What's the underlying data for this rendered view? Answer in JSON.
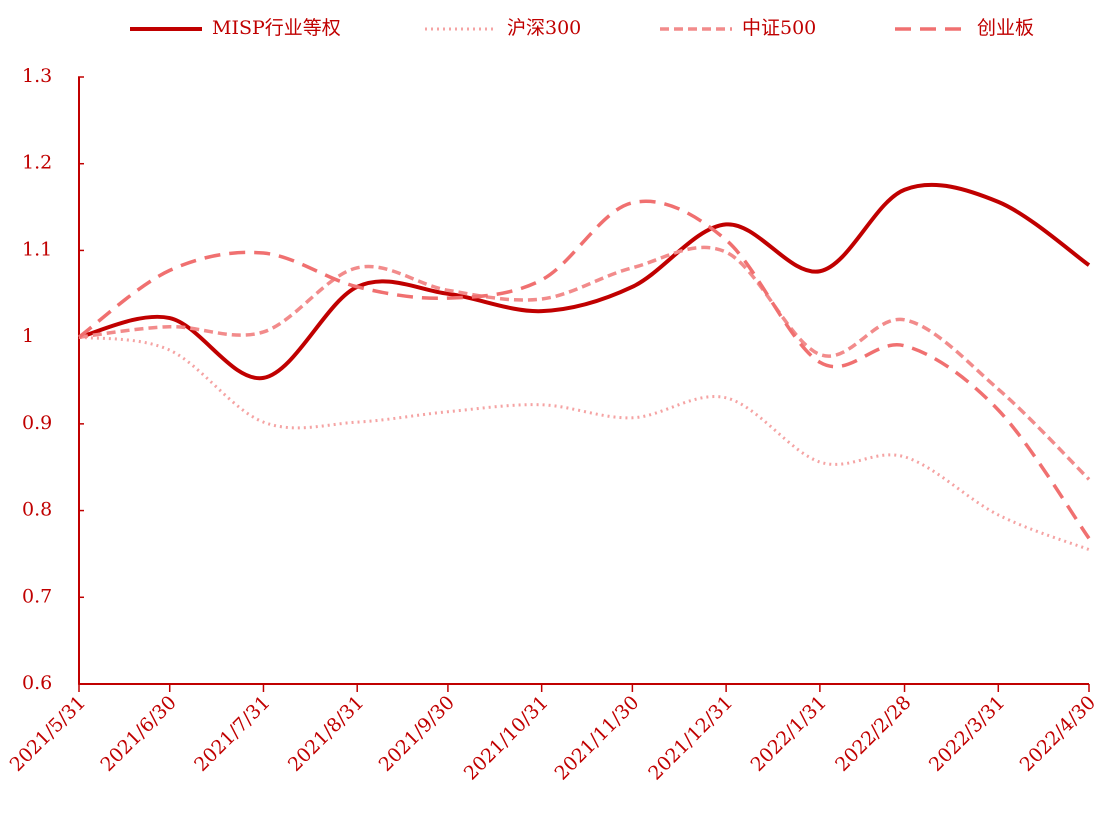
{
  "chart_data": {
    "type": "line",
    "x": [
      "2021/5/31",
      "2021/6/30",
      "2021/7/31",
      "2021/8/31",
      "2021/9/30",
      "2021/10/31",
      "2021/11/30",
      "2021/12/31",
      "2022/1/31",
      "2022/2/28",
      "2022/3/31",
      "2022/4/30"
    ],
    "series": [
      {
        "name": "MISP行业等权",
        "color": "#c00000",
        "line_style": "solid",
        "values": [
          1.0,
          1.022,
          0.953,
          1.058,
          1.05,
          1.03,
          1.058,
          1.13,
          1.076,
          1.17,
          1.156,
          1.083
        ]
      },
      {
        "name": "沪深300",
        "color": "#f5a3a3",
        "line_style": "dotted",
        "values": [
          1.0,
          0.985,
          0.902,
          0.902,
          0.914,
          0.922,
          0.907,
          0.93,
          0.856,
          0.862,
          0.795,
          0.755
        ]
      },
      {
        "name": "中证500",
        "color": "#f28b8b",
        "line_style": "dashed",
        "values": [
          1.0,
          1.012,
          1.006,
          1.08,
          1.054,
          1.044,
          1.08,
          1.098,
          0.98,
          1.02,
          0.94,
          0.836
        ]
      },
      {
        "name": "创业板",
        "color": "#f07070",
        "line_style": "longdash",
        "values": [
          1.0,
          1.077,
          1.097,
          1.058,
          1.045,
          1.066,
          1.155,
          1.112,
          0.971,
          0.99,
          0.916,
          0.768
        ]
      }
    ],
    "ylim": [
      0.6,
      1.3
    ],
    "yticks": [
      0.6,
      0.7,
      0.8,
      0.9,
      1,
      1.1,
      1.2,
      1.3
    ],
    "axis_color": "#c00000",
    "smooth": true
  }
}
